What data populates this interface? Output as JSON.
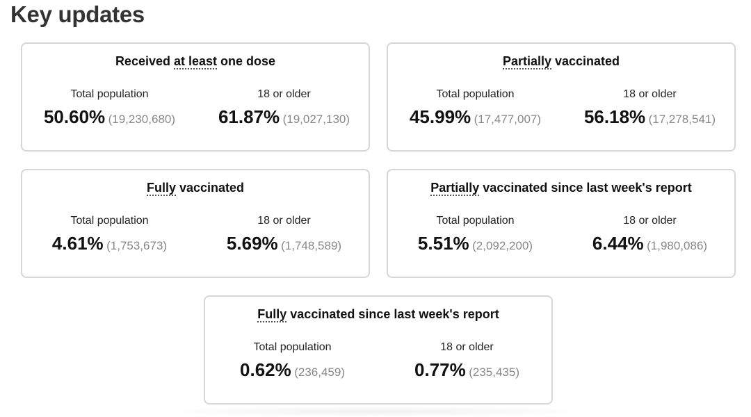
{
  "page": {
    "heading": "Key updates"
  },
  "cards": [
    {
      "title_underlined": "",
      "title_pre": "Received ",
      "title_dotted": "at least",
      "title_post": " one dose",
      "left": {
        "label": "Total population",
        "pct": "50.60%",
        "count": "(19,230,680)"
      },
      "right": {
        "label": "18 or older",
        "pct": "61.87%",
        "count": "(19,027,130)"
      }
    },
    {
      "title_pre": "",
      "title_dotted": "Partially",
      "title_post": " vaccinated",
      "left": {
        "label": "Total population",
        "pct": "45.99%",
        "count": "(17,477,007)"
      },
      "right": {
        "label": "18 or older",
        "pct": "56.18%",
        "count": "(17,278,541)"
      }
    },
    {
      "title_pre": "",
      "title_dotted": "Fully",
      "title_post": " vaccinated",
      "left": {
        "label": "Total population",
        "pct": "4.61%",
        "count": "(1,753,673)"
      },
      "right": {
        "label": "18 or older",
        "pct": "5.69%",
        "count": "(1,748,589)"
      }
    },
    {
      "title_pre": "",
      "title_dotted": "Partially",
      "title_post": " vaccinated since last week's report",
      "left": {
        "label": "Total population",
        "pct": "5.51%",
        "count": "(2,092,200)"
      },
      "right": {
        "label": "18 or older",
        "pct": "6.44%",
        "count": "(1,980,086)"
      }
    },
    {
      "title_pre": "",
      "title_dotted": "Fully",
      "title_post": " vaccinated since last week's report",
      "left": {
        "label": "Total population",
        "pct": "0.62%",
        "count": "(236,459)"
      },
      "right": {
        "label": "18 or older",
        "pct": "0.77%",
        "count": "(235,435)"
      }
    }
  ]
}
